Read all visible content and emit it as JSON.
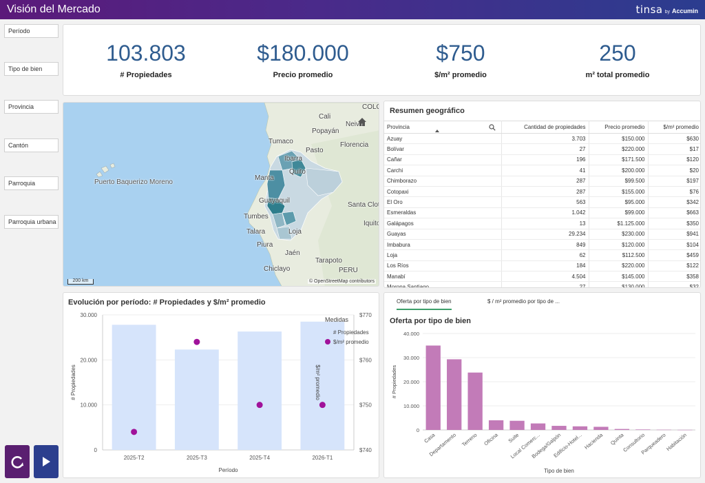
{
  "header": {
    "title": "Visión del Mercado",
    "logo_brand": "tinsa",
    "logo_by": "by",
    "logo_sub": "Accumin"
  },
  "filters": [
    "Período",
    "Tipo de bien",
    "Provincia",
    "Cantón",
    "Parroquia",
    "Parroquia urbana"
  ],
  "kpis": [
    {
      "value": "103.803",
      "label": "# Propiedades"
    },
    {
      "value": "$180.000",
      "label": "Precio promedio"
    },
    {
      "value": "$750",
      "label": "$/m² promedio"
    },
    {
      "value": "250",
      "label": "m² total promedio"
    }
  ],
  "map": {
    "labels": [
      "Cali",
      "COLO",
      "Neiva",
      "Popayán",
      "Tumaco",
      "Pasto",
      "Florencia",
      "Ibarra",
      "Quito",
      "Manta",
      "Guayaquil",
      "Santa Clota",
      "Tumbes",
      "Loja",
      "Iquito",
      "Talara",
      "Piura",
      "Jaén",
      "Tarapoto",
      "Chiclayo",
      "PERU",
      "Puerto Baquerizo Moreno"
    ],
    "scale": "200 km",
    "attribution": "© OpenStreetMap contributors",
    "colors": {
      "sea": "#a9d1f0",
      "land": "#e8ecdf",
      "choropleth_dark": "#2e7d8c",
      "choropleth_light": "#c9d9e2"
    }
  },
  "geo_table": {
    "title": "Resumen geográfico",
    "columns": [
      "Provincia",
      "Cantidad de propiedades",
      "Precio promedio",
      "$/m² promedio"
    ],
    "rows": [
      [
        "Azuay",
        "3.703",
        "$150.000",
        "$630"
      ],
      [
        "Bolívar",
        "27",
        "$220.000",
        "$17"
      ],
      [
        "Cañar",
        "196",
        "$171.500",
        "$120"
      ],
      [
        "Carchi",
        "41",
        "$200.000",
        "$20"
      ],
      [
        "Chimborazo",
        "287",
        "$99.500",
        "$197"
      ],
      [
        "Cotopaxi",
        "287",
        "$155.000",
        "$76"
      ],
      [
        "El Oro",
        "563",
        "$95.000",
        "$342"
      ],
      [
        "Esmeraldas",
        "1.042",
        "$99.000",
        "$663"
      ],
      [
        "Galápagos",
        "13",
        "$1.125.000",
        "$350"
      ],
      [
        "Guayas",
        "29.234",
        "$230.000",
        "$941"
      ],
      [
        "Imbabura",
        "849",
        "$120.000",
        "$104"
      ],
      [
        "Loja",
        "62",
        "$112.500",
        "$459"
      ],
      [
        "Los Ríos",
        "184",
        "$220.000",
        "$122"
      ],
      [
        "Manabí",
        "4.504",
        "$145.000",
        "$358"
      ],
      [
        "Morona Santiago",
        "27",
        "$130.000",
        "$32"
      ]
    ]
  },
  "evolution": {
    "title": "Evolución por período: # Propiedades y $/m² promedio",
    "xlabel": "Período",
    "ylabel_left": "# Propiedades",
    "ylabel_right": "$/m² promedio",
    "legend_title": "Medidas",
    "left_ticks": [
      "30.000",
      "20.000",
      "10.000",
      "0"
    ],
    "right_ticks": [
      "$770",
      "$760",
      "$750",
      "$740"
    ]
  },
  "oferta": {
    "tabs": [
      "Oferta por tipo de bien",
      "$ / m² promedio por tipo de ..."
    ],
    "title": "Oferta por tipo de bien",
    "xlabel": "Tipo de bien",
    "ylabel": "# Propiedades",
    "ticks": [
      "40.000",
      "30.000",
      "20.000",
      "10.000",
      "0"
    ]
  },
  "chart_data": [
    {
      "type": "bar",
      "categories": [
        "2025-T2",
        "2025-T3",
        "2025-T4",
        "2026-T1"
      ],
      "series": [
        {
          "name": "# Propiedades",
          "type": "bar",
          "axis": "left",
          "values": [
            27800,
            22300,
            26300,
            28500
          ],
          "color": "#d6e4fb"
        },
        {
          "name": "$/m² promedio",
          "type": "scatter",
          "axis": "right",
          "values": [
            744,
            764,
            750,
            750
          ],
          "color": "#a0129a"
        }
      ],
      "title": "Evolución por período: # Propiedades y $/m² promedio",
      "xlabel": "Período",
      "ylabel": "# Propiedades",
      "ylabel_right": "$/m² promedio",
      "ylim": [
        0,
        30000
      ],
      "ylim_right": [
        740,
        770
      ],
      "legend": "right"
    },
    {
      "type": "bar",
      "categories": [
        "Casa",
        "Departamento",
        "Terreno",
        "Oficina",
        "Suite",
        "Local Comerc...",
        "Bodega/Galpón",
        "Edificio-Hotel...",
        "Hacienda",
        "Quinta",
        "Consultorio",
        "Parqueadero",
        "Habitación"
      ],
      "values": [
        35000,
        29300,
        23800,
        4000,
        3800,
        2700,
        1700,
        1500,
        1300,
        400,
        200,
        100,
        50
      ],
      "color": "#c27bb8",
      "title": "Oferta por tipo de bien",
      "xlabel": "Tipo de bien",
      "ylabel": "# Propiedades",
      "ylim": [
        0,
        40000
      ]
    }
  ]
}
